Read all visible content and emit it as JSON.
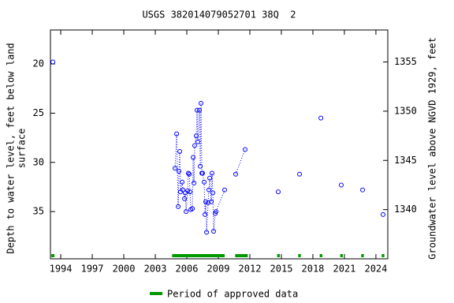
{
  "chart_data": {
    "type": "scatter",
    "title": "USGS 382014079052701 38Q  2",
    "ylabel": [
      "Depth to water level, feet below land",
      "surface"
    ],
    "y2label": "Groundwater level above NGVD 1929, feet",
    "xlim": [
      1993.02,
      2025.13
    ],
    "xticks": [
      1994,
      1997,
      2000,
      2003,
      2006,
      2009,
      2012,
      2015,
      2018,
      2021,
      2024
    ],
    "ylim": [
      39.8,
      16.55
    ],
    "yticks": [
      20,
      25,
      30,
      35
    ],
    "y2lim": [
      1335.0,
      1358.25
    ],
    "y2ticks": [
      1340,
      1345,
      1350,
      1355
    ],
    "series": [
      {
        "name": "Depth to water level",
        "color": "#0000ff",
        "x": [
          1993.25,
          null,
          2004.88,
          2005.03,
          2005.18,
          2005.25,
          2005.33,
          2005.4,
          2005.55,
          2005.63,
          2005.78,
          2005.85,
          2005.93,
          2006.08,
          2006.15,
          2006.23,
          2006.3,
          2006.38,
          2006.53,
          2006.6,
          2006.68,
          2006.75,
          2006.9,
          2006.98,
          2007.05,
          2007.2,
          2007.28,
          2007.35,
          2007.43,
          2007.5,
          2007.65,
          2007.73,
          2007.8,
          2007.88,
          2008.03,
          2008.1,
          2008.18,
          2008.33,
          2008.4,
          2008.48,
          2008.55,
          2008.7,
          2008.78,
          2009.6,
          null,
          2010.65,
          2011.55,
          null,
          2014.7,
          null,
          2016.73,
          null,
          2018.76,
          null,
          2020.7,
          null,
          2022.73,
          null,
          2024.68
        ],
        "values": [
          19.8,
          null,
          30.6,
          27.1,
          34.5,
          30.9,
          28.9,
          33.0,
          32.0,
          32.8,
          33.7,
          33.1,
          35.0,
          32.9,
          31.1,
          31.2,
          33.0,
          34.8,
          34.7,
          29.5,
          32.1,
          28.3,
          27.3,
          24.7,
          27.9,
          24.7,
          30.4,
          24.0,
          31.1,
          31.1,
          32.0,
          35.3,
          34.0,
          37.1,
          34.1,
          32.8,
          31.6,
          34.0,
          31.1,
          33.1,
          37.0,
          35.2,
          35.0,
          32.8,
          null,
          31.2,
          28.7,
          null,
          33.0,
          null,
          31.2,
          null,
          25.5,
          null,
          32.3,
          null,
          32.8,
          null,
          35.3
        ]
      }
    ],
    "approved_periods": [
      [
        1993.1,
        1993.4
      ],
      [
        2004.6,
        2009.6
      ],
      [
        2010.6,
        2011.8
      ],
      [
        2014.6,
        2014.85
      ],
      [
        2016.6,
        2016.85
      ],
      [
        2018.65,
        2018.9
      ],
      [
        2020.6,
        2020.85
      ],
      [
        2022.6,
        2022.85
      ],
      [
        2024.55,
        2024.8
      ]
    ],
    "approved_color": "#009900",
    "legend": "Period of approved data"
  }
}
